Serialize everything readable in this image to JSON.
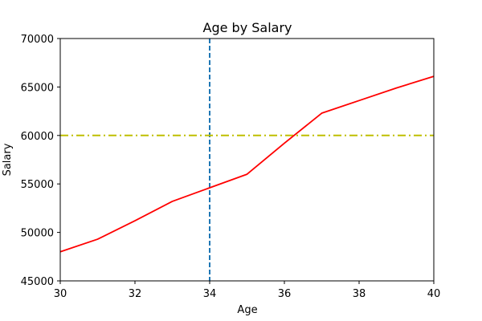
{
  "chart_data": {
    "type": "line",
    "title": "Age by Salary",
    "xlabel": "Age",
    "ylabel": "Salary",
    "xlim": [
      30,
      40
    ],
    "ylim": [
      45000,
      70000
    ],
    "x_ticks": [
      30,
      32,
      34,
      36,
      38,
      40
    ],
    "y_ticks": [
      45000,
      50000,
      55000,
      60000,
      65000,
      70000
    ],
    "grid": false,
    "legend": "none",
    "series": [
      {
        "x": [
          30,
          31,
          32,
          33,
          34,
          35,
          36,
          37,
          38,
          39,
          40
        ],
        "values": [
          48000,
          49300,
          51200,
          53200,
          54600,
          56000,
          59200,
          62300,
          63600,
          64900,
          66100
        ],
        "color": "#ff0000",
        "style": "solid"
      }
    ],
    "reference_lines": [
      {
        "orientation": "vertical",
        "value": 34,
        "color": "#1f77b4",
        "style": "dashed"
      },
      {
        "orientation": "horizontal",
        "value": 60000,
        "color": "#bfbf00",
        "style": "dashdot"
      }
    ]
  }
}
